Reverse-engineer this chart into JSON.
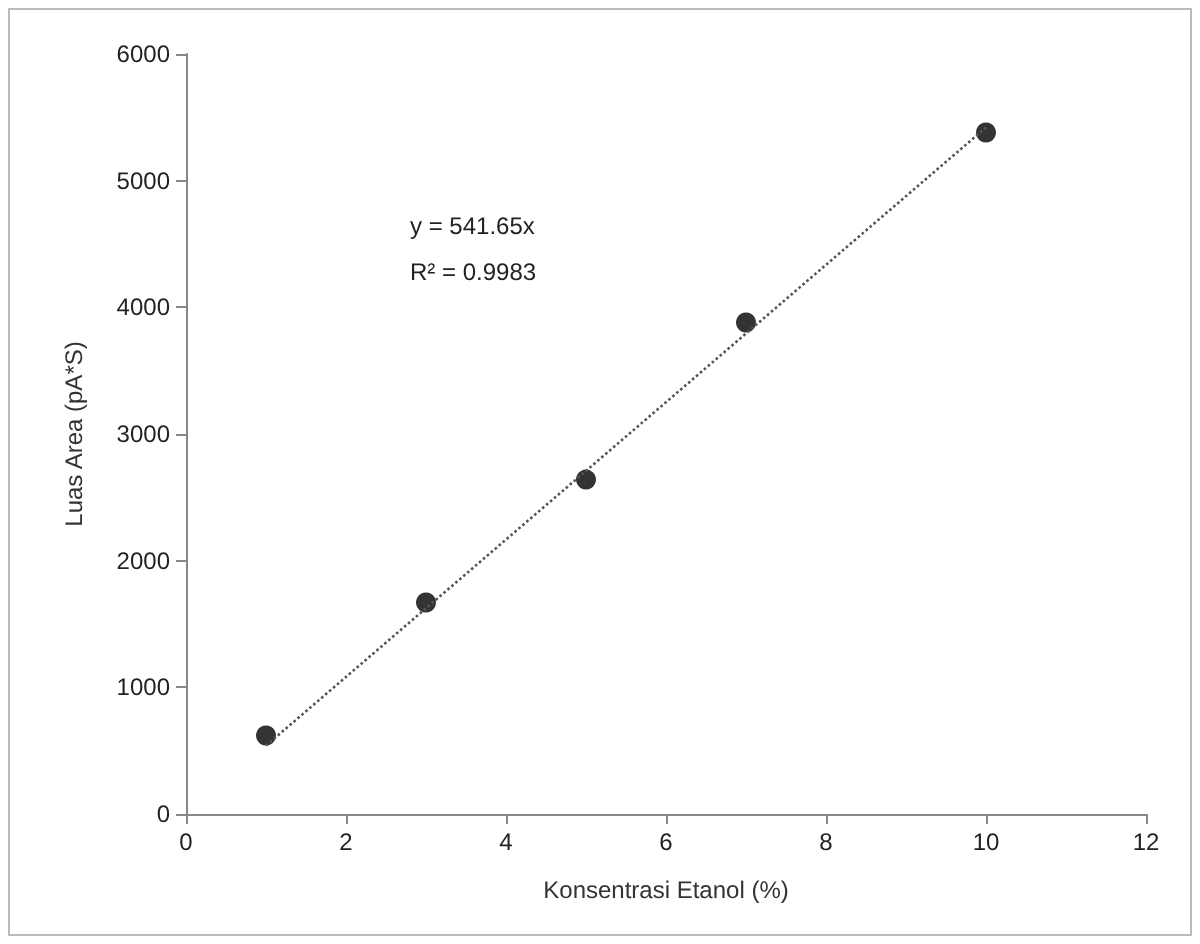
{
  "chart_data": {
    "type": "scatter",
    "xlabel": "Konsentrasi Etanol (%)",
    "ylabel": "Luas Area (pA*S)",
    "annotations": [
      "y = 541.65x",
      "R² = 0.9983"
    ],
    "series": [
      {
        "marker": "circle",
        "color": "#000000",
        "x": [
          1,
          3,
          5,
          7,
          10
        ],
        "values": [
          620,
          1670,
          2640,
          3880,
          5380
        ]
      },
      {
        "type": "line",
        "marker": "none",
        "line_style": "dotted",
        "color": "#555555",
        "x": [
          1,
          10
        ],
        "values": [
          540,
          5420
        ]
      }
    ],
    "xlim": [
      0,
      12
    ],
    "xticks": [
      0,
      2,
      4,
      6,
      8,
      10,
      12
    ],
    "ylim": [
      0,
      6000
    ],
    "yticks": [
      0,
      1000,
      2000,
      3000,
      4000,
      5000,
      6000
    ],
    "grid": false
  }
}
